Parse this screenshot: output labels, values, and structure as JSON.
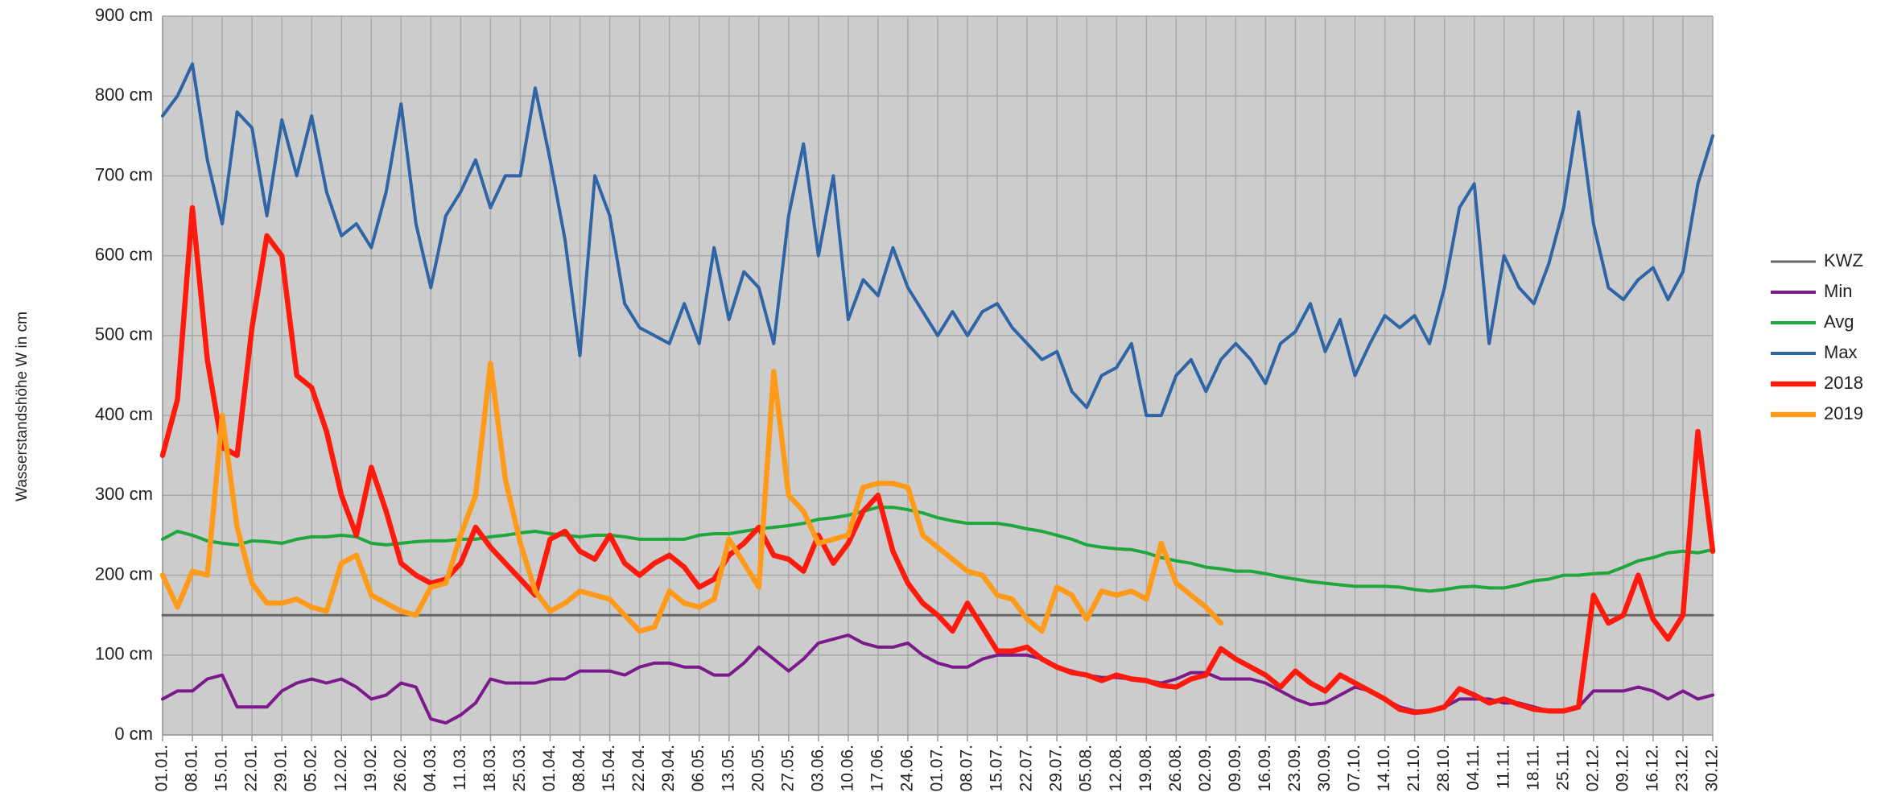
{
  "chart_data": {
    "type": "line",
    "y_label": "Wasserstandshöhe W in cm",
    "ylim": [
      0,
      900
    ],
    "yticks": [
      {
        "value": 0,
        "label": "0 cm"
      },
      {
        "value": 100,
        "label": "100 cm"
      },
      {
        "value": 200,
        "label": "200 cm"
      },
      {
        "value": 300,
        "label": "300 cm"
      },
      {
        "value": 400,
        "label": "400 cm"
      },
      {
        "value": 500,
        "label": "500 cm"
      },
      {
        "value": 600,
        "label": "600 cm"
      },
      {
        "value": 700,
        "label": "700 cm"
      },
      {
        "value": 800,
        "label": "800 cm"
      },
      {
        "value": 900,
        "label": "900 cm"
      }
    ],
    "grid": true,
    "legend": "right",
    "categories": [
      "01.01.",
      null,
      "08.01.",
      null,
      "15.01.",
      null,
      "22.01.",
      null,
      "29.01.",
      null,
      "05.02.",
      null,
      "12.02.",
      null,
      "19.02.",
      null,
      "26.02.",
      null,
      "04.03.",
      null,
      "11.03.",
      null,
      "18.03.",
      null,
      "25.03.",
      null,
      "01.04.",
      null,
      "08.04.",
      null,
      "15.04.",
      null,
      "22.04.",
      null,
      "29.04.",
      null,
      "06.05.",
      null,
      "13.05.",
      null,
      "20.05.",
      null,
      "27.05.",
      null,
      "03.06.",
      null,
      "10.06.",
      null,
      "17.06.",
      null,
      "24.06.",
      null,
      "01.07.",
      null,
      "08.07.",
      null,
      "15.07.",
      null,
      "22.07.",
      null,
      "29.07.",
      null,
      "05.08.",
      null,
      "12.08.",
      null,
      "19.08.",
      null,
      "26.08.",
      null,
      "02.09.",
      null,
      "09.09.",
      null,
      "16.09.",
      null,
      "23.09.",
      null,
      "30.09.",
      null,
      "07.10.",
      null,
      "14.10.",
      null,
      "21.10.",
      null,
      "28.10.",
      null,
      "04.11.",
      null,
      "11.11.",
      null,
      "18.11.",
      null,
      "25.11.",
      null,
      "02.12.",
      null,
      "09.12.",
      null,
      "16.12.",
      null,
      "23.12.",
      null,
      "30.12."
    ],
    "series": [
      {
        "name": "KWZ",
        "color": "#666666",
        "values": [
          150,
          150,
          150,
          150,
          150,
          150,
          150,
          150,
          150,
          150,
          150,
          150,
          150,
          150,
          150,
          150,
          150,
          150,
          150,
          150,
          150,
          150,
          150,
          150,
          150,
          150,
          150,
          150,
          150,
          150,
          150,
          150,
          150,
          150,
          150,
          150,
          150,
          150,
          150,
          150,
          150,
          150,
          150,
          150,
          150,
          150,
          150,
          150,
          150,
          150,
          150,
          150,
          150,
          150,
          150,
          150,
          150,
          150,
          150,
          150,
          150,
          150,
          150,
          150,
          150,
          150,
          150,
          150,
          150,
          150,
          150,
          150,
          150,
          150,
          150,
          150,
          150,
          150,
          150,
          150,
          150,
          150,
          150,
          150,
          150,
          150,
          150,
          150,
          150,
          150,
          150,
          150,
          150,
          150,
          150,
          150,
          150,
          150,
          150,
          150,
          150,
          150,
          150,
          150,
          150
        ]
      },
      {
        "name": "Min",
        "color": "#7b1a8a",
        "values": [
          45,
          55,
          55,
          70,
          75,
          35,
          35,
          35,
          55,
          65,
          70,
          65,
          70,
          60,
          45,
          50,
          65,
          60,
          20,
          15,
          25,
          40,
          70,
          65,
          65,
          65,
          70,
          70,
          80,
          80,
          80,
          75,
          85,
          90,
          90,
          85,
          85,
          75,
          75,
          90,
          110,
          95,
          80,
          95,
          115,
          120,
          125,
          115,
          110,
          110,
          115,
          100,
          90,
          85,
          85,
          95,
          100,
          100,
          100,
          95,
          85,
          80,
          75,
          72,
          72,
          70,
          68,
          65,
          70,
          78,
          78,
          70,
          70,
          70,
          65,
          55,
          45,
          38,
          40,
          50,
          60,
          55,
          45,
          35,
          30,
          30,
          35,
          45,
          45,
          45,
          40,
          40,
          35,
          30,
          30,
          35,
          55,
          55,
          55,
          60,
          55,
          45,
          55,
          45,
          50
        ]
      },
      {
        "name": "Avg",
        "color": "#1ea83c",
        "values": [
          245,
          255,
          250,
          243,
          240,
          238,
          243,
          242,
          240,
          245,
          248,
          248,
          250,
          248,
          240,
          238,
          240,
          242,
          243,
          243,
          245,
          245,
          248,
          250,
          253,
          255,
          252,
          250,
          248,
          250,
          250,
          248,
          245,
          245,
          245,
          245,
          250,
          252,
          252,
          255,
          258,
          260,
          262,
          265,
          270,
          272,
          275,
          280,
          285,
          285,
          282,
          278,
          272,
          268,
          265,
          265,
          265,
          262,
          258,
          255,
          250,
          245,
          238,
          235,
          233,
          232,
          228,
          222,
          218,
          215,
          210,
          208,
          205,
          205,
          202,
          198,
          195,
          192,
          190,
          188,
          186,
          186,
          186,
          185,
          182,
          180,
          182,
          185,
          186,
          184,
          184,
          188,
          193,
          195,
          200,
          200,
          202,
          203,
          210,
          218,
          222,
          228,
          230,
          228,
          232
        ]
      },
      {
        "name": "Max",
        "color": "#2f64a5",
        "values": [
          775,
          800,
          840,
          720,
          640,
          780,
          760,
          650,
          770,
          700,
          775,
          680,
          625,
          640,
          610,
          680,
          790,
          640,
          560,
          650,
          680,
          720,
          660,
          700,
          700,
          810,
          720,
          620,
          475,
          700,
          650,
          540,
          510,
          500,
          490,
          540,
          490,
          610,
          520,
          580,
          560,
          490,
          650,
          740,
          600,
          700,
          520,
          570,
          550,
          610,
          560,
          530,
          500,
          530,
          500,
          530,
          540,
          510,
          490,
          470,
          480,
          430,
          410,
          450,
          460,
          490,
          400,
          400,
          450,
          470,
          430,
          470,
          490,
          470,
          440,
          490,
          505,
          540,
          480,
          520,
          450,
          490,
          525,
          510,
          525,
          490,
          560,
          660,
          690,
          490,
          600,
          560,
          540,
          590,
          660,
          780,
          640,
          560,
          545,
          570,
          585,
          545,
          580,
          690,
          750
        ]
      },
      {
        "name": "2018",
        "color": "#ff1a0e",
        "values": [
          350,
          420,
          660,
          470,
          360,
          350,
          510,
          625,
          600,
          450,
          435,
          380,
          300,
          250,
          335,
          280,
          215,
          200,
          190,
          195,
          215,
          260,
          235,
          215,
          195,
          175,
          245,
          255,
          230,
          220,
          250,
          215,
          200,
          215,
          225,
          210,
          185,
          195,
          225,
          240,
          260,
          225,
          220,
          205,
          250,
          215,
          240,
          280,
          300,
          230,
          190,
          165,
          150,
          130,
          165,
          135,
          105,
          105,
          110,
          95,
          85,
          78,
          75,
          68,
          75,
          70,
          68,
          62,
          60,
          70,
          75,
          108,
          95,
          85,
          75,
          60,
          80,
          65,
          55,
          75,
          65,
          55,
          45,
          32,
          28,
          30,
          35,
          58,
          50,
          40,
          45,
          38,
          32,
          30,
          30,
          35,
          175,
          140,
          150,
          200,
          145,
          120,
          150,
          380,
          230
        ]
      },
      {
        "name": "2019",
        "color": "#ff9a1a",
        "values": [
          200,
          160,
          205,
          200,
          400,
          260,
          190,
          165,
          165,
          170,
          160,
          155,
          215,
          225,
          175,
          165,
          155,
          150,
          185,
          190,
          250,
          300,
          465,
          320,
          240,
          180,
          155,
          165,
          180,
          175,
          170,
          150,
          130,
          135,
          180,
          165,
          160,
          170,
          245,
          215,
          185,
          455,
          300,
          280,
          240,
          245,
          250,
          310,
          315,
          315,
          310,
          250,
          235,
          220,
          205,
          200,
          175,
          170,
          145,
          130,
          185,
          175,
          145,
          180,
          175,
          180,
          170,
          240,
          190,
          175,
          160,
          140,
          null,
          null,
          null,
          null,
          null,
          null,
          null,
          null,
          null,
          null,
          null,
          null,
          null,
          null,
          null,
          null,
          null,
          null,
          null,
          null,
          null,
          null,
          null,
          null,
          null,
          null,
          null,
          null,
          null,
          null,
          null,
          null,
          null
        ]
      }
    ]
  }
}
